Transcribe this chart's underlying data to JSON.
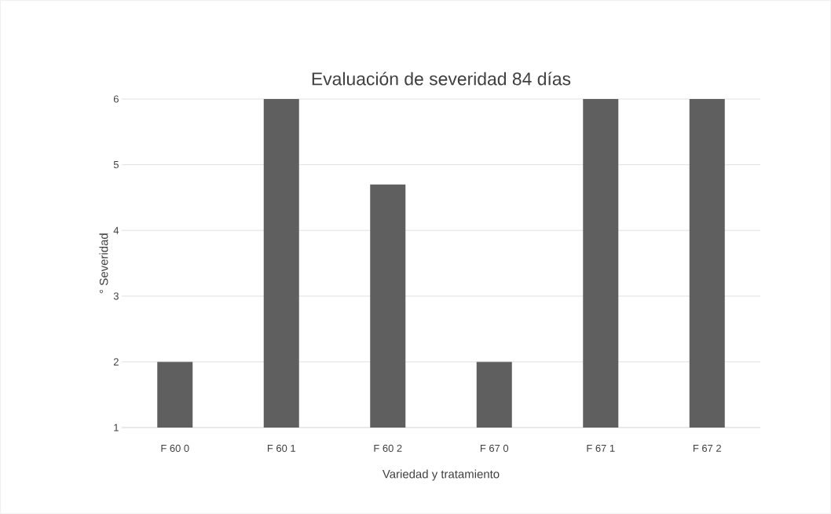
{
  "chart_data": {
    "type": "bar",
    "title": "Evaluación de severidad 84 días",
    "xlabel": "Variedad y tratamiento",
    "ylabel": "° Severidad",
    "categories": [
      "F 60 0",
      "F 60 1",
      "F 60 2",
      "F 67 0",
      "F 67 1",
      "F 67 2"
    ],
    "values": [
      2,
      6,
      4.7,
      2,
      6,
      6
    ],
    "color": "#5f5f5f",
    "ylim": [
      1,
      6
    ],
    "yticks": [
      1,
      2,
      3,
      4,
      5,
      6
    ],
    "grid": "y"
  }
}
